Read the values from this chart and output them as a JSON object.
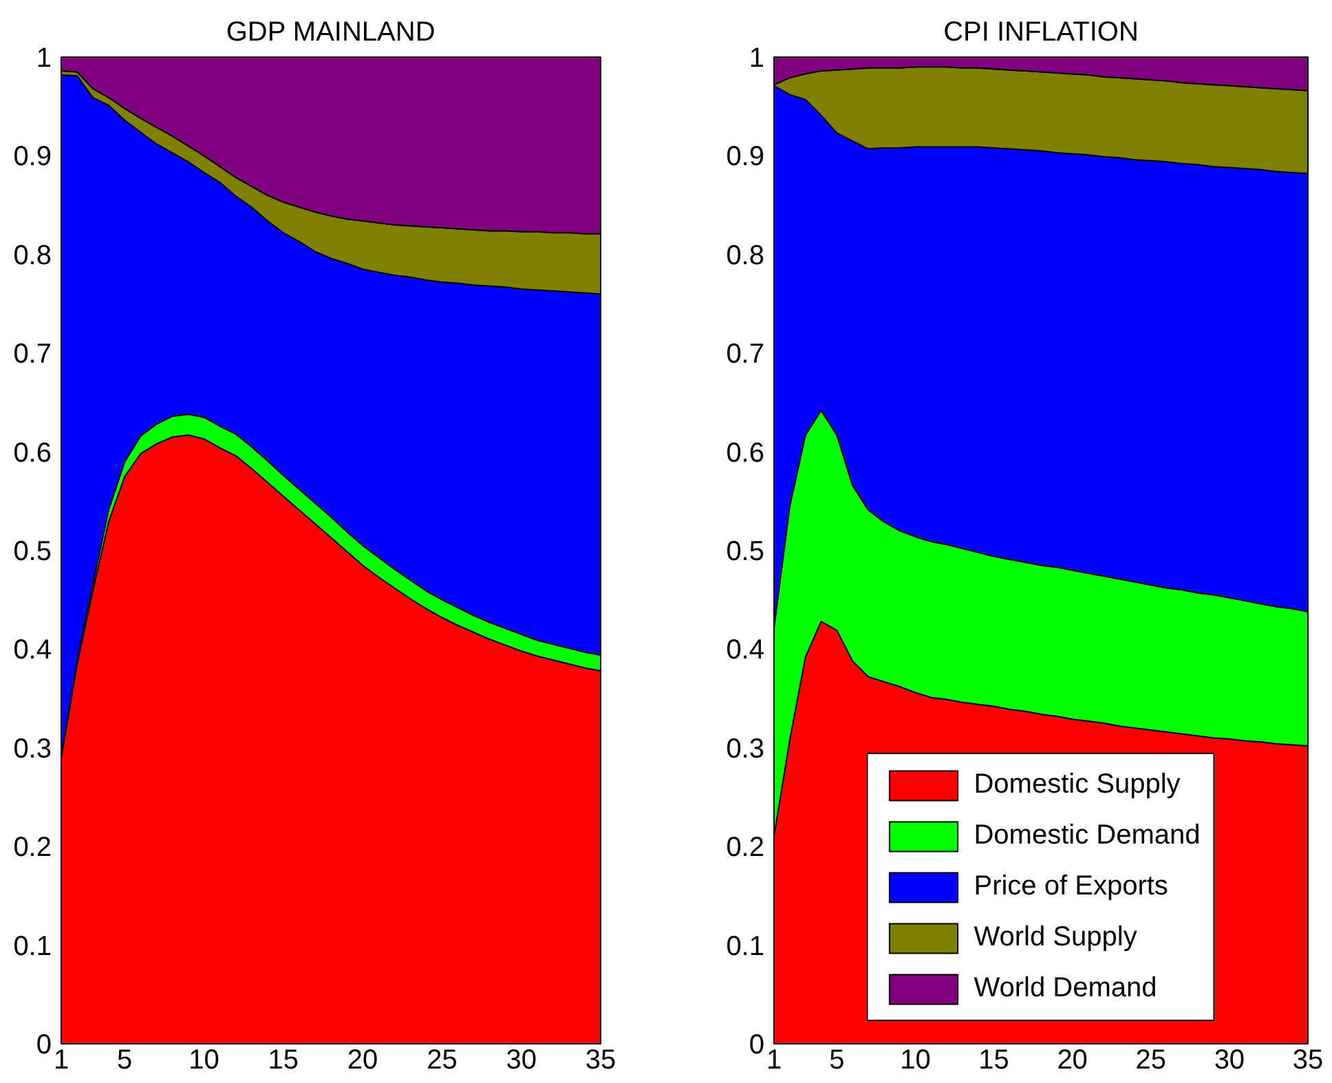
{
  "chart_data": [
    {
      "type": "area",
      "title": "GDP MAINLAND",
      "stacked": true,
      "xlim": [
        1,
        35
      ],
      "ylim": [
        0,
        1
      ],
      "xticks": [
        1,
        5,
        10,
        15,
        20,
        25,
        30,
        35
      ],
      "yticks": [
        0,
        0.1,
        0.2,
        0.3,
        0.4,
        0.5,
        0.6,
        0.7,
        0.8,
        0.9,
        1
      ],
      "x": [
        1,
        2,
        3,
        4,
        5,
        6,
        7,
        8,
        9,
        10,
        11,
        12,
        13,
        14,
        15,
        16,
        17,
        18,
        19,
        20,
        21,
        22,
        23,
        24,
        25,
        26,
        27,
        28,
        29,
        30,
        31,
        32,
        33,
        34,
        35
      ],
      "series": [
        {
          "color": "#ff0000",
          "values": [
            0.29,
            0.385,
            0.46,
            0.53,
            0.575,
            0.598,
            0.608,
            0.615,
            0.617,
            0.613,
            0.604,
            0.596,
            0.583,
            0.569,
            0.555,
            0.541,
            0.527,
            0.513,
            0.499,
            0.485,
            0.473,
            0.462,
            0.451,
            0.441,
            0.432,
            0.424,
            0.417,
            0.41,
            0.404,
            0.398,
            0.393,
            0.389,
            0.385,
            0.381,
            0.378
          ]
        },
        {
          "color": "#00ff00",
          "values": [
            0.002,
            0.004,
            0.007,
            0.012,
            0.015,
            0.018,
            0.02,
            0.021,
            0.021,
            0.022,
            0.022,
            0.022,
            0.022,
            0.022,
            0.021,
            0.021,
            0.021,
            0.021,
            0.02,
            0.02,
            0.02,
            0.019,
            0.019,
            0.018,
            0.018,
            0.018,
            0.017,
            0.017,
            0.017,
            0.017,
            0.016,
            0.016,
            0.016,
            0.016,
            0.016
          ]
        },
        {
          "color": "#0000ff",
          "values": [
            0.69,
            0.592,
            0.492,
            0.409,
            0.346,
            0.308,
            0.284,
            0.267,
            0.256,
            0.248,
            0.247,
            0.241,
            0.243,
            0.243,
            0.246,
            0.251,
            0.255,
            0.262,
            0.272,
            0.28,
            0.289,
            0.298,
            0.307,
            0.315,
            0.322,
            0.329,
            0.335,
            0.341,
            0.346,
            0.35,
            0.355,
            0.358,
            0.361,
            0.364,
            0.366
          ]
        },
        {
          "color": "#808000",
          "values": [
            0.004,
            0.004,
            0.009,
            0.008,
            0.012,
            0.014,
            0.017,
            0.017,
            0.016,
            0.017,
            0.016,
            0.019,
            0.021,
            0.026,
            0.031,
            0.035,
            0.04,
            0.043,
            0.045,
            0.049,
            0.05,
            0.051,
            0.052,
            0.054,
            0.055,
            0.055,
            0.056,
            0.056,
            0.057,
            0.058,
            0.059,
            0.059,
            0.06,
            0.06,
            0.061
          ]
        },
        {
          "color": "#800080",
          "values": [
            0.014,
            0.015,
            0.032,
            0.041,
            0.052,
            0.062,
            0.071,
            0.08,
            0.09,
            0.1,
            0.111,
            0.122,
            0.131,
            0.14,
            0.147,
            0.152,
            0.157,
            0.161,
            0.164,
            0.166,
            0.168,
            0.17,
            0.171,
            0.172,
            0.173,
            0.174,
            0.175,
            0.176,
            0.176,
            0.177,
            0.177,
            0.178,
            0.178,
            0.179,
            0.179
          ]
        }
      ]
    },
    {
      "type": "area",
      "title": "CPI INFLATION",
      "stacked": true,
      "legend": "bottom",
      "xlim": [
        1,
        35
      ],
      "ylim": [
        0,
        1
      ],
      "xticks": [
        1,
        5,
        10,
        15,
        20,
        25,
        30,
        35
      ],
      "yticks": [
        0,
        0.1,
        0.2,
        0.3,
        0.4,
        0.5,
        0.6,
        0.7,
        0.8,
        0.9,
        1
      ],
      "x": [
        1,
        2,
        3,
        4,
        5,
        6,
        7,
        8,
        9,
        10,
        11,
        12,
        13,
        14,
        15,
        16,
        17,
        18,
        19,
        20,
        21,
        22,
        23,
        24,
        25,
        26,
        27,
        28,
        29,
        30,
        31,
        32,
        33,
        34,
        35
      ],
      "series": [
        {
          "name": "Domestic Supply",
          "color": "#ff0000",
          "values": [
            0.211,
            0.308,
            0.392,
            0.428,
            0.419,
            0.388,
            0.372,
            0.367,
            0.362,
            0.356,
            0.351,
            0.349,
            0.346,
            0.344,
            0.342,
            0.339,
            0.337,
            0.334,
            0.332,
            0.329,
            0.327,
            0.325,
            0.322,
            0.32,
            0.318,
            0.316,
            0.314,
            0.312,
            0.31,
            0.309,
            0.307,
            0.306,
            0.304,
            0.303,
            0.302
          ]
        },
        {
          "name": "Domestic Demand",
          "color": "#00ff00",
          "values": [
            0.211,
            0.237,
            0.225,
            0.214,
            0.198,
            0.178,
            0.169,
            0.162,
            0.158,
            0.158,
            0.158,
            0.157,
            0.156,
            0.154,
            0.152,
            0.152,
            0.151,
            0.151,
            0.151,
            0.151,
            0.15,
            0.149,
            0.149,
            0.148,
            0.147,
            0.146,
            0.146,
            0.145,
            0.145,
            0.143,
            0.142,
            0.14,
            0.139,
            0.138,
            0.136
          ]
        },
        {
          "name": "Price of Exports",
          "color": "#0000ff",
          "values": [
            0.549,
            0.417,
            0.34,
            0.299,
            0.306,
            0.349,
            0.366,
            0.379,
            0.388,
            0.395,
            0.4,
            0.403,
            0.407,
            0.411,
            0.414,
            0.416,
            0.418,
            0.42,
            0.42,
            0.422,
            0.424,
            0.425,
            0.427,
            0.428,
            0.43,
            0.432,
            0.432,
            0.434,
            0.434,
            0.436,
            0.438,
            0.44,
            0.441,
            0.442,
            0.444
          ]
        },
        {
          "name": "World Supply",
          "color": "#808000",
          "values": [
            0.001,
            0.017,
            0.026,
            0.045,
            0.064,
            0.073,
            0.082,
            0.081,
            0.081,
            0.081,
            0.081,
            0.081,
            0.08,
            0.08,
            0.08,
            0.08,
            0.08,
            0.08,
            0.081,
            0.081,
            0.081,
            0.081,
            0.081,
            0.082,
            0.082,
            0.082,
            0.082,
            0.082,
            0.083,
            0.083,
            0.083,
            0.083,
            0.084,
            0.084,
            0.084
          ]
        },
        {
          "name": "World Demand",
          "color": "#800080",
          "values": [
            0.028,
            0.021,
            0.017,
            0.014,
            0.013,
            0.012,
            0.011,
            0.011,
            0.011,
            0.01,
            0.01,
            0.01,
            0.011,
            0.011,
            0.012,
            0.013,
            0.014,
            0.015,
            0.016,
            0.017,
            0.018,
            0.02,
            0.021,
            0.022,
            0.023,
            0.024,
            0.026,
            0.027,
            0.028,
            0.029,
            0.03,
            0.031,
            0.032,
            0.033,
            0.034
          ]
        }
      ]
    }
  ]
}
